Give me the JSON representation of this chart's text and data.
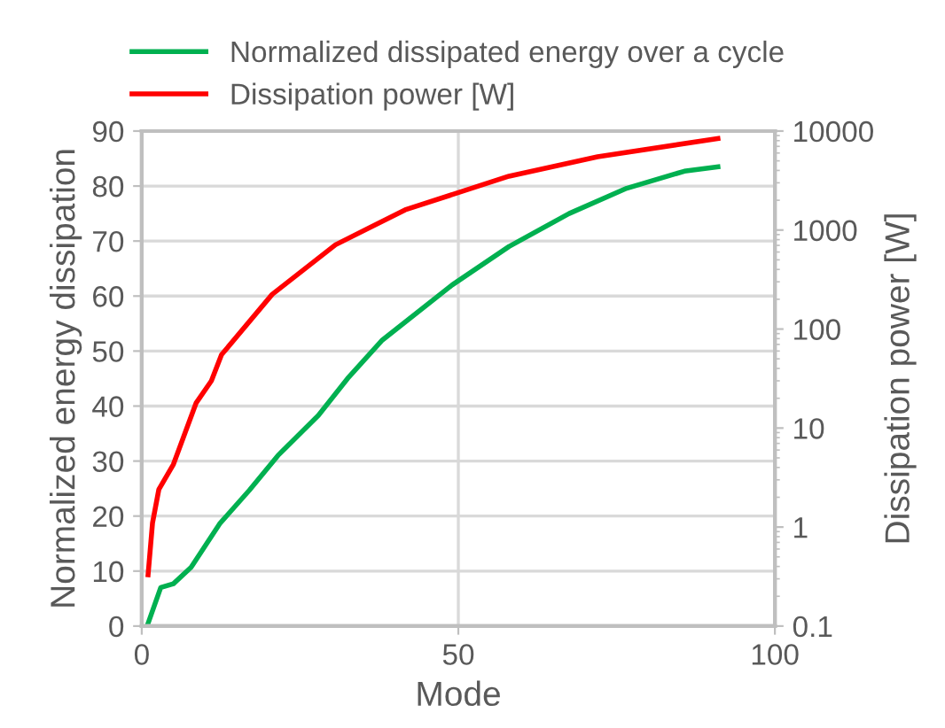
{
  "chart_data": {
    "type": "line",
    "xlabel": "Mode",
    "ylabel": "Normalized energy dissipation",
    "y2label": "Dissipation power [W]",
    "xlim": [
      0,
      100
    ],
    "xticks": [
      0,
      50,
      100
    ],
    "ylim": [
      0,
      90
    ],
    "yticks": [
      0,
      10,
      20,
      30,
      40,
      50,
      60,
      70,
      80,
      90
    ],
    "y2lim": [
      0.1,
      10000
    ],
    "y2ticks": [
      0.1,
      1,
      10,
      100,
      1000,
      10000
    ],
    "log": "y2",
    "grid": true,
    "legend": "top",
    "marker": "none",
    "line_style": "solid",
    "series": [
      {
        "name": "Normalized dissipated energy over a cycle",
        "color": "#00b050",
        "x": [
          1,
          3,
          5,
          7.8,
          12.3,
          17,
          21.5,
          27.9,
          32.5,
          38,
          49,
          58,
          67.5,
          76.6,
          85.7,
          91
        ],
        "values": [
          0.5,
          7,
          7.7,
          10.7,
          18.6,
          24.7,
          31,
          38.3,
          45,
          52,
          62,
          69,
          75,
          79.6,
          82.7,
          83.5
        ]
      },
      {
        "name": "Dissipation power [W]",
        "color": "#ff0000",
        "axis": "y2",
        "x": [
          1,
          1.7,
          2.7,
          5,
          8.6,
          11,
          12.6,
          20.6,
          30.6,
          41.6,
          58,
          72,
          91
        ],
        "values": [
          0.33,
          1.1,
          2.4,
          4.3,
          18,
          30,
          55,
          224,
          710,
          1600,
          3500,
          5500,
          8400
        ]
      }
    ]
  }
}
